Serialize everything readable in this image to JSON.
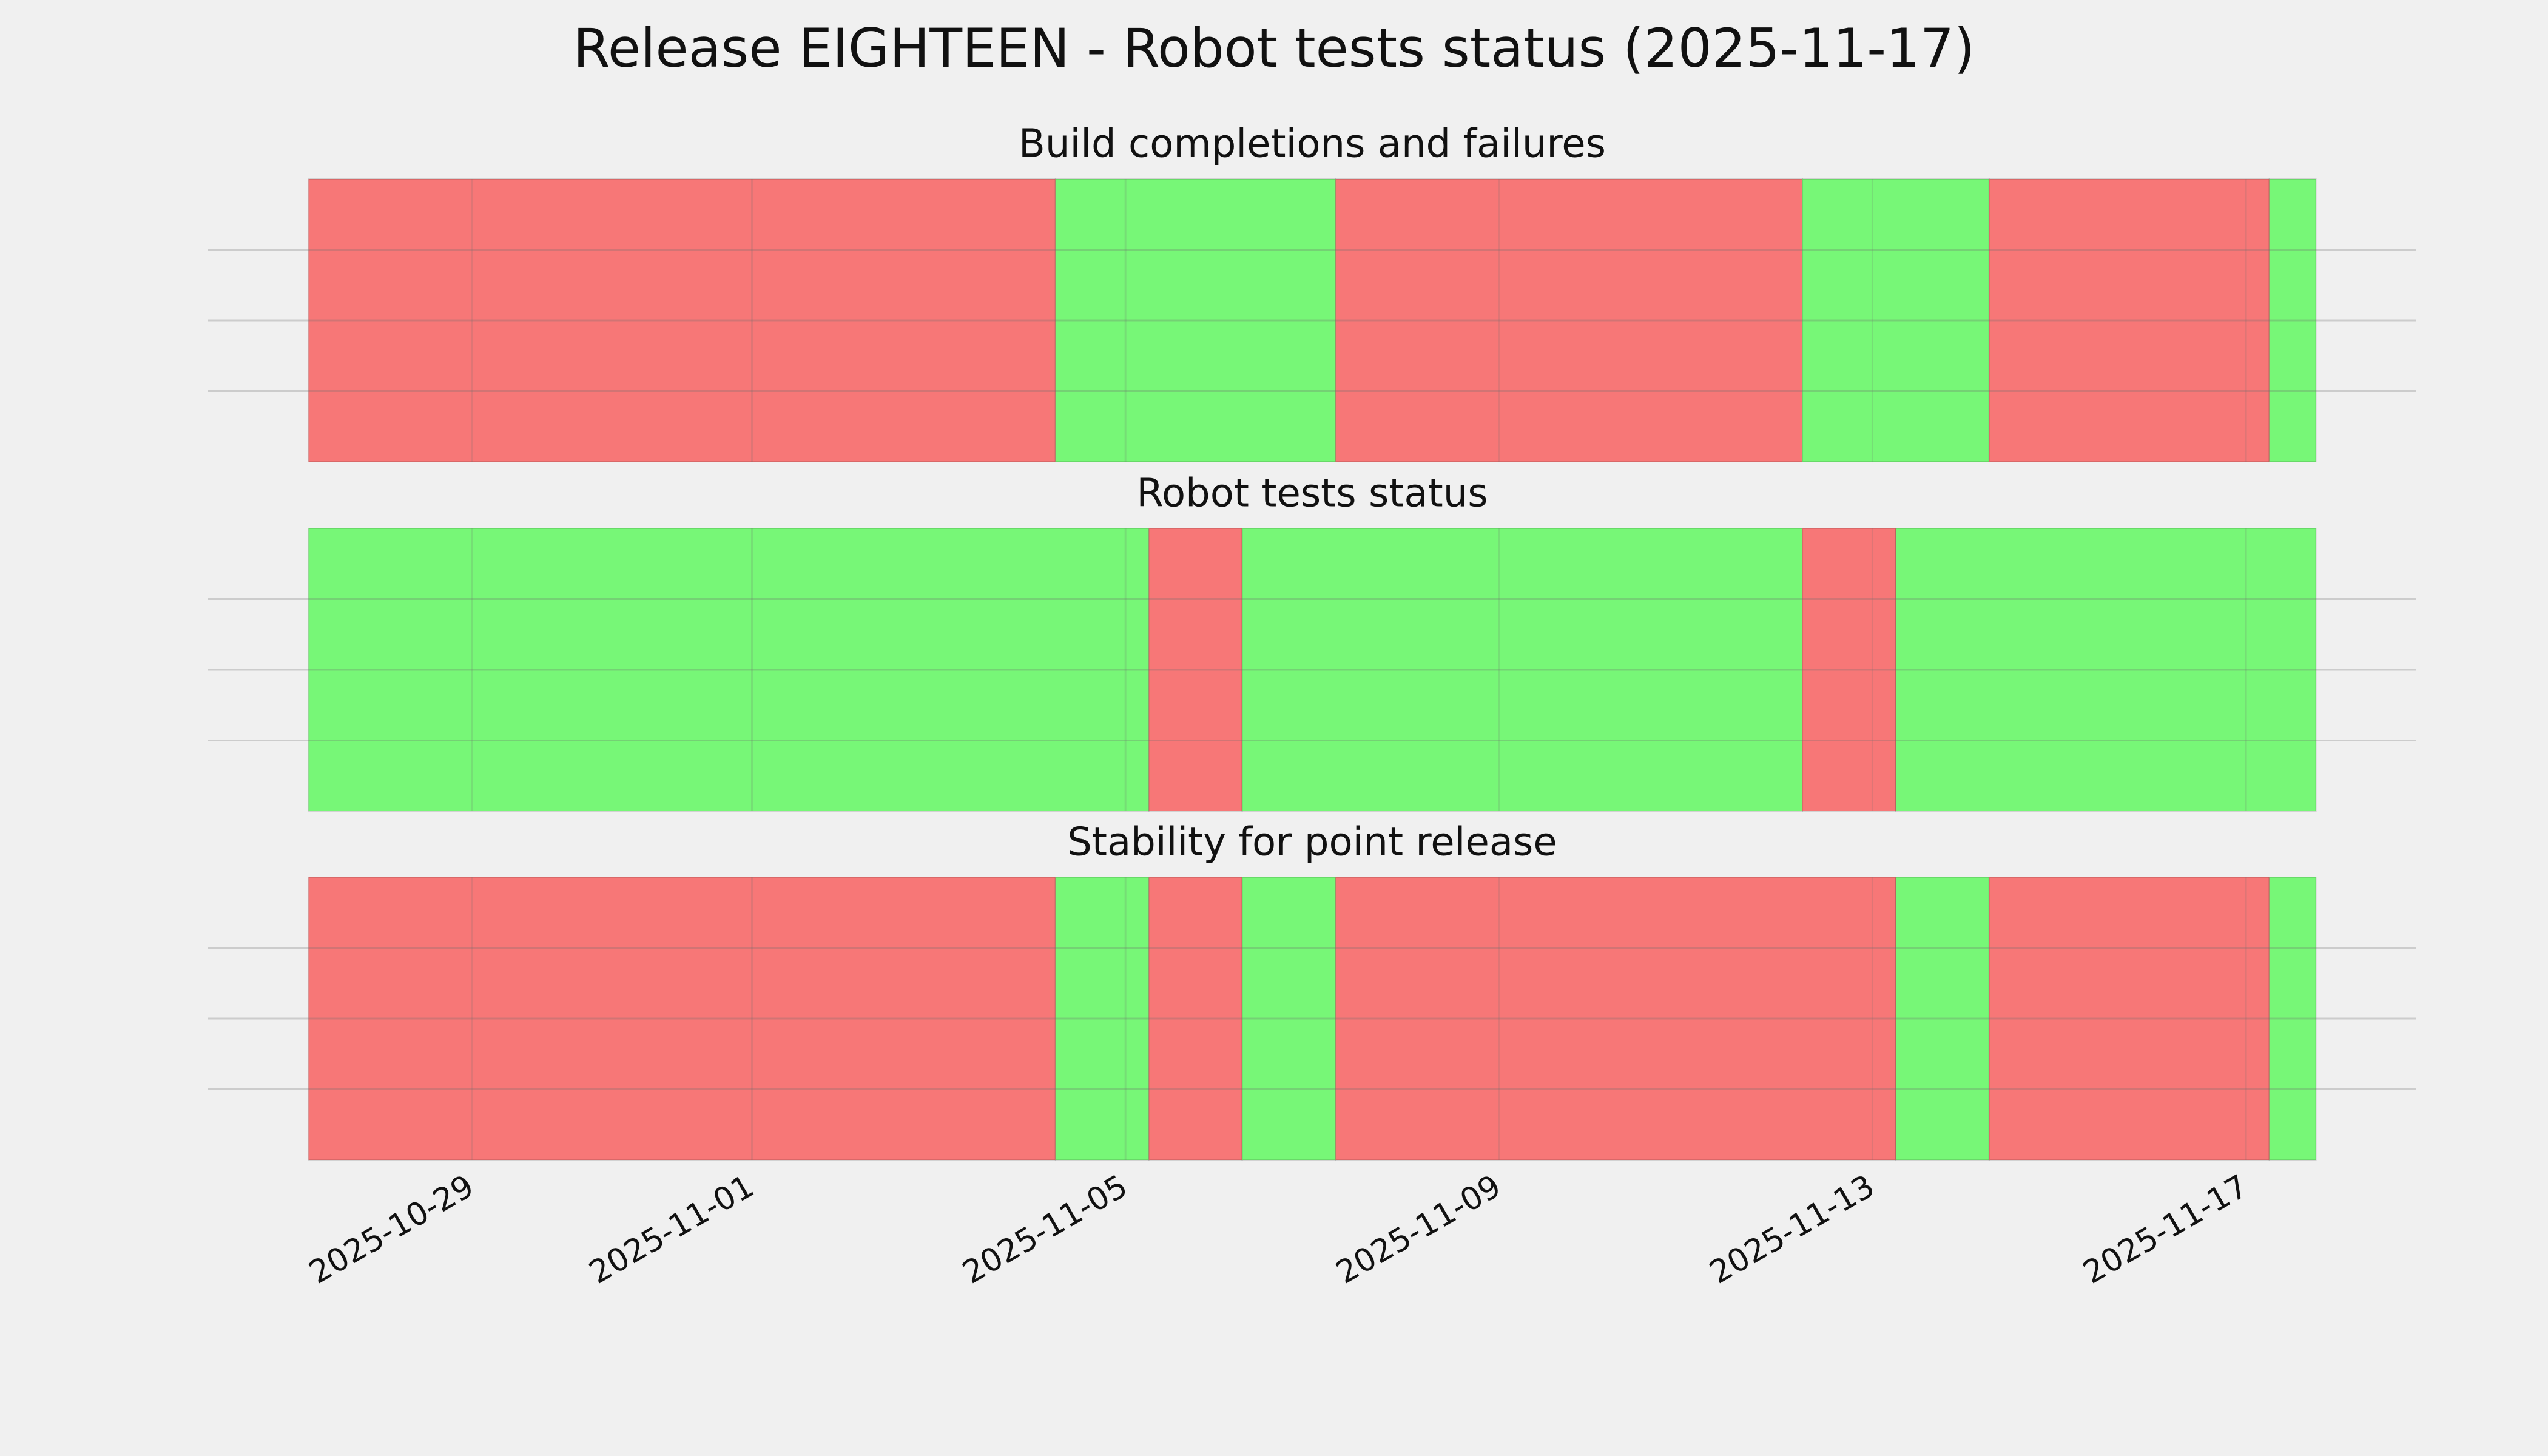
{
  "chart_data": {
    "type": "timeline",
    "title": "Release EIGHTEEN - Robot tests status (2025-11-17)",
    "xlim": [
      "2025-10-26T04:12",
      "2025-11-18T19:48"
    ],
    "xticks": [
      "2025-10-29",
      "2025-11-01",
      "2025-11-05",
      "2025-11-09",
      "2025-11-13",
      "2025-11-17"
    ],
    "ylim": [
      0,
      1
    ],
    "yticks": [
      0.25,
      0.5,
      0.75
    ],
    "grid": true,
    "panels": [
      {
        "title": "Build completions and failures",
        "segments": [
          {
            "start": "2025-10-27T06:00",
            "end": "2025-11-04T06:00",
            "color": "#f77777"
          },
          {
            "start": "2025-11-04T06:00",
            "end": "2025-11-07T06:00",
            "color": "#77f777"
          },
          {
            "start": "2025-11-07T06:00",
            "end": "2025-11-12T06:00",
            "color": "#f77777"
          },
          {
            "start": "2025-11-12T06:00",
            "end": "2025-11-14T06:00",
            "color": "#77f777"
          },
          {
            "start": "2025-11-14T06:00",
            "end": "2025-11-17T06:00",
            "color": "#f77777"
          },
          {
            "start": "2025-11-17T06:00",
            "end": "2025-11-17T18:00",
            "color": "#77f777"
          }
        ]
      },
      {
        "title": "Robot tests status",
        "segments": [
          {
            "start": "2025-10-27T06:00",
            "end": "2025-11-05T06:00",
            "color": "#77f777"
          },
          {
            "start": "2025-11-05T06:00",
            "end": "2025-11-06T06:00",
            "color": "#f77777"
          },
          {
            "start": "2025-11-06T06:00",
            "end": "2025-11-12T06:00",
            "color": "#77f777"
          },
          {
            "start": "2025-11-12T06:00",
            "end": "2025-11-13T06:00",
            "color": "#f77777"
          },
          {
            "start": "2025-11-13T06:00",
            "end": "2025-11-17T18:00",
            "color": "#77f777"
          }
        ]
      },
      {
        "title": "Stability for point release",
        "segments": [
          {
            "start": "2025-10-27T06:00",
            "end": "2025-11-04T06:00",
            "color": "#f77777"
          },
          {
            "start": "2025-11-04T06:00",
            "end": "2025-11-05T06:00",
            "color": "#77f777"
          },
          {
            "start": "2025-11-05T06:00",
            "end": "2025-11-06T06:00",
            "color": "#f77777"
          },
          {
            "start": "2025-11-06T06:00",
            "end": "2025-11-07T06:00",
            "color": "#77f777"
          },
          {
            "start": "2025-11-07T06:00",
            "end": "2025-11-13T06:00",
            "color": "#f77777"
          },
          {
            "start": "2025-11-13T06:00",
            "end": "2025-11-14T06:00",
            "color": "#77f777"
          },
          {
            "start": "2025-11-14T06:00",
            "end": "2025-11-17T06:00",
            "color": "#f77777"
          },
          {
            "start": "2025-11-17T06:00",
            "end": "2025-11-17T18:00",
            "color": "#77f777"
          }
        ]
      }
    ]
  }
}
